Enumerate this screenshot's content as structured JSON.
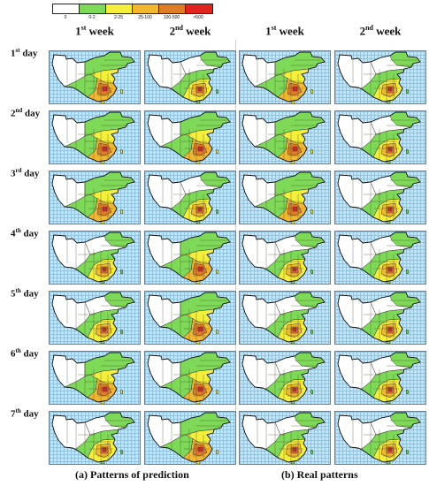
{
  "legend": {
    "items": [
      {
        "label": "0",
        "color": "#ffffff"
      },
      {
        "label": "0-2",
        "color": "#7dd957"
      },
      {
        "label": "2-25",
        "color": "#f4ef3a"
      },
      {
        "label": "25-100",
        "color": "#f2b72e"
      },
      {
        "label": "100-500",
        "color": "#df7c26"
      },
      {
        "label": ">500",
        "color": "#e2241f"
      }
    ]
  },
  "column_headers": [
    {
      "ord": "1",
      "sup": "st",
      "rest": " week"
    },
    {
      "ord": "2",
      "sup": "nd",
      "rest": " week"
    },
    {
      "ord": "1",
      "sup": "st",
      "rest": " week"
    },
    {
      "ord": "2",
      "sup": "nd",
      "rest": " week"
    }
  ],
  "row_labels": [
    {
      "ord": "1",
      "sup": "st",
      "rest": " day"
    },
    {
      "ord": "2",
      "sup": "nd",
      "rest": " day"
    },
    {
      "ord": "3",
      "sup": "rd",
      "rest": " day"
    },
    {
      "ord": "4",
      "sup": "th",
      "rest": " day"
    },
    {
      "ord": "5",
      "sup": "th",
      "rest": " day"
    },
    {
      "ord": "6",
      "sup": "th",
      "rest": " day"
    },
    {
      "ord": "7",
      "sup": "th",
      "rest": " day"
    }
  ],
  "captions": {
    "left": "(a)   Patterns of prediction",
    "right": "(b)   Real patterns"
  },
  "maps": [
    [
      "A",
      "B",
      "A",
      "B"
    ],
    [
      "A",
      "A",
      "A",
      "B"
    ],
    [
      "A",
      "B",
      "A",
      "B"
    ],
    [
      "B",
      "A",
      "B",
      "B"
    ],
    [
      "B",
      "A",
      "B",
      "B"
    ],
    [
      "A",
      "A",
      "B",
      "B"
    ],
    [
      "B",
      "A",
      "B",
      "B"
    ]
  ]
}
